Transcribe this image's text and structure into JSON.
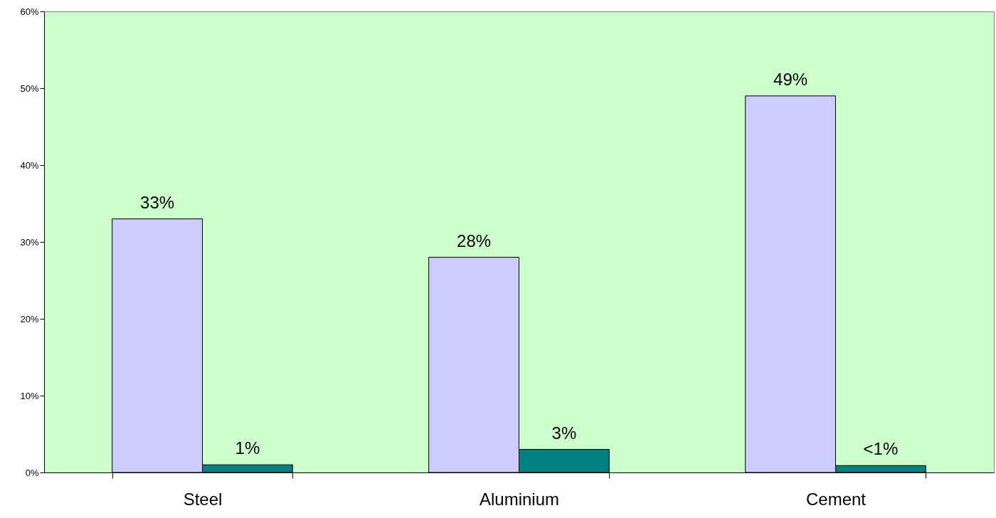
{
  "chart_data": {
    "type": "bar",
    "categories": [
      "Steel",
      "Aluminium",
      "Cement"
    ],
    "series": [
      {
        "color": "#ccccff",
        "values": [
          33,
          28,
          49
        ],
        "value_labels": [
          "33%",
          "28%",
          "49%"
        ]
      },
      {
        "color": "#008080",
        "values": [
          1,
          3,
          0.9
        ],
        "value_labels": [
          "1%",
          "3%",
          "<1%"
        ]
      }
    ],
    "ylim": [
      0,
      60
    ],
    "yticks": [
      {
        "value": 0,
        "label": "0%"
      },
      {
        "value": 10,
        "label": "10%"
      },
      {
        "value": 20,
        "label": "20%"
      },
      {
        "value": 30,
        "label": "30%"
      },
      {
        "value": 40,
        "label": "40%"
      },
      {
        "value": 50,
        "label": "50%"
      },
      {
        "value": 60,
        "label": "60%"
      }
    ],
    "grid": false
  }
}
